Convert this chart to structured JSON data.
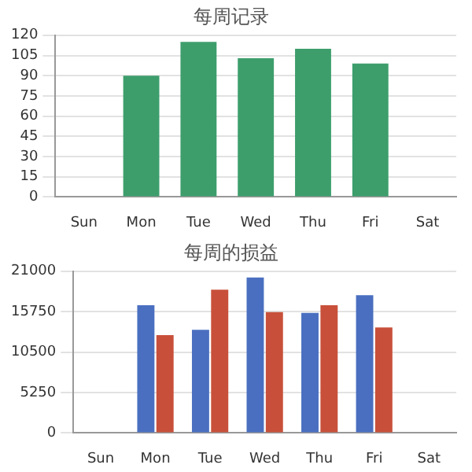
{
  "chart_data": [
    {
      "type": "bar",
      "title": "每周记录",
      "categories": [
        "Sun",
        "Mon",
        "Tue",
        "Wed",
        "Thu",
        "Fri",
        "Sat"
      ],
      "values": [
        null,
        90,
        115,
        103,
        110,
        99,
        null
      ],
      "color": "#3d9e6c",
      "ylim": [
        0,
        120
      ],
      "yticks": [
        0,
        15,
        30,
        45,
        60,
        75,
        90,
        105,
        120
      ],
      "grid": "y",
      "legend": false
    },
    {
      "type": "bar",
      "title": "每周的损益",
      "categories": [
        "Sun",
        "Mon",
        "Tue",
        "Wed",
        "Thu",
        "Fri",
        "Sat"
      ],
      "series": [
        {
          "color": "#4a6fc0",
          "values": [
            null,
            16600,
            13400,
            20200,
            15600,
            17900,
            null
          ]
        },
        {
          "color": "#c8503a",
          "values": [
            null,
            12700,
            18600,
            15700,
            16600,
            13700,
            null
          ]
        }
      ],
      "ylim": [
        0,
        21000
      ],
      "yticks": [
        0,
        5250,
        10500,
        15750,
        21000
      ],
      "grid": "y",
      "legend": false
    }
  ]
}
